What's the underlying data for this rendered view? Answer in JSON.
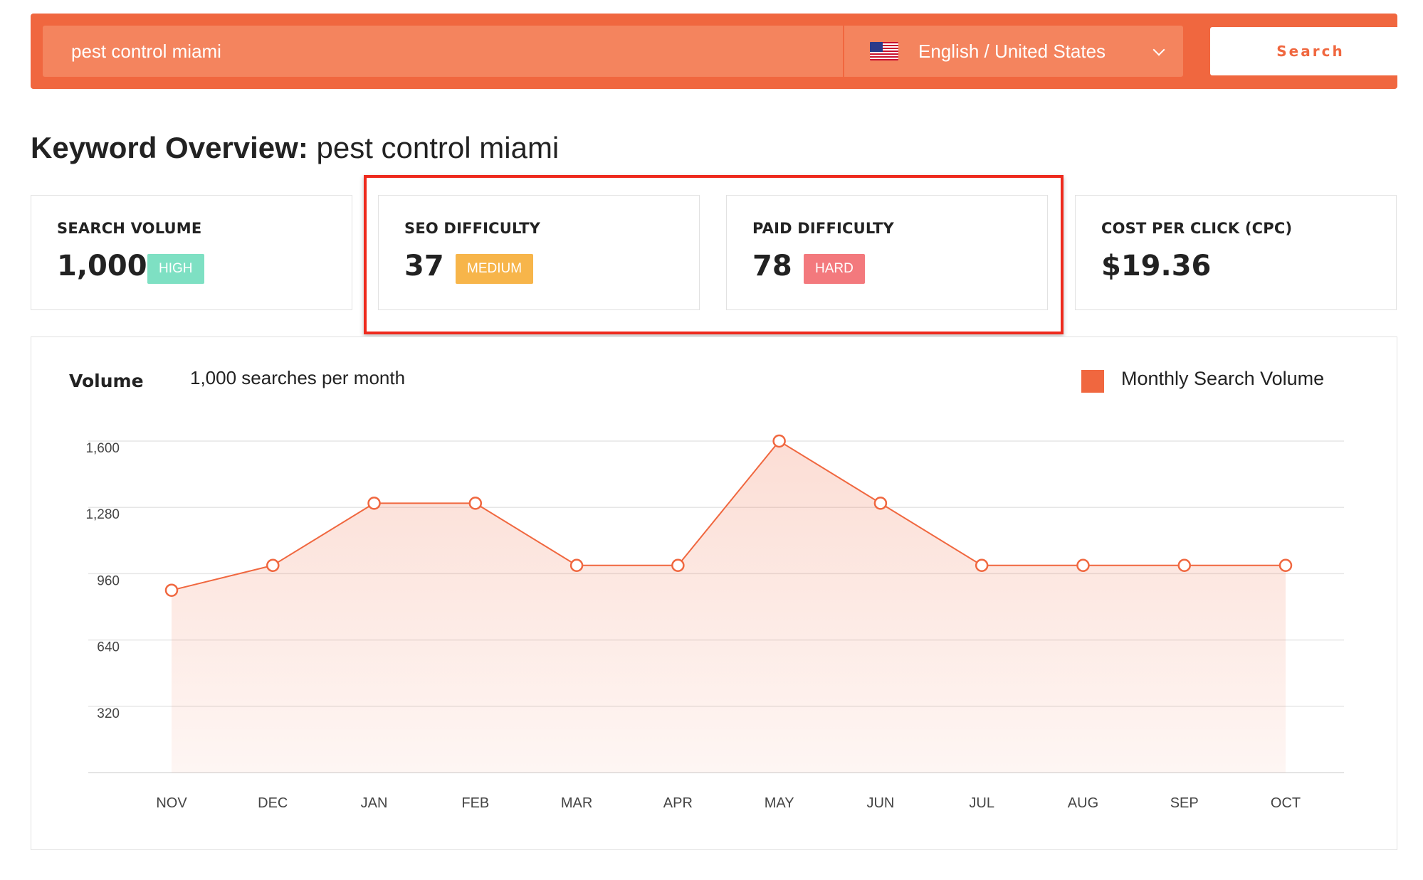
{
  "search": {
    "query": "pest control miami",
    "locale": "English / United States",
    "button_label": "Search"
  },
  "title": {
    "lead": "Keyword Overview:",
    "keyword": "pest control miami"
  },
  "metrics": [
    {
      "label": "SEARCH VOLUME",
      "value": "1,000",
      "badge": "HIGH",
      "badge_color": "#7ee0c3"
    },
    {
      "label": "SEO DIFFICULTY",
      "value": "37",
      "badge": "MEDIUM",
      "badge_color": "#f7b54a"
    },
    {
      "label": "PAID DIFFICULTY",
      "value": "78",
      "badge": "HARD",
      "badge_color": "#f3797d"
    },
    {
      "label": "COST PER CLICK (CPC)",
      "value": "$19.36"
    }
  ],
  "volume_panel": {
    "title": "Volume",
    "subtitle": "1,000 searches per month",
    "legend": "Monthly Search Volume"
  },
  "colors": {
    "accent": "#f0673f",
    "highlight": "#ee2a1d"
  },
  "chart_data": {
    "type": "area",
    "categories": [
      "NOV",
      "DEC",
      "JAN",
      "FEB",
      "MAR",
      "APR",
      "MAY",
      "JUN",
      "JUL",
      "AUG",
      "SEP",
      "OCT"
    ],
    "series": [
      {
        "name": "Monthly Search Volume",
        "values": [
          880,
          1000,
          1300,
          1300,
          1000,
          1000,
          1600,
          1300,
          1000,
          1000,
          1000,
          1000
        ]
      }
    ],
    "yticks": [
      320,
      640,
      960,
      1280,
      1600
    ],
    "ylim": [
      0,
      1600
    ],
    "grid": true,
    "legend_position": "top-right"
  }
}
